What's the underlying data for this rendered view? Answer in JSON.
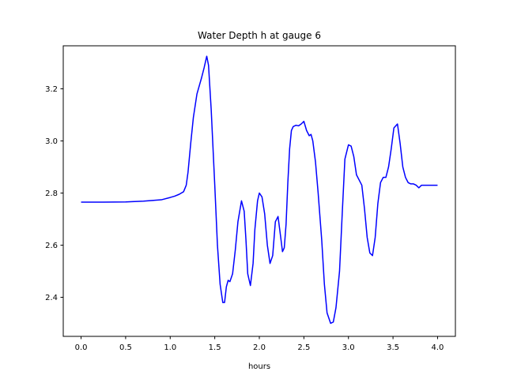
{
  "chart_data": {
    "type": "line",
    "title": "Water Depth h at gauge 6",
    "xlabel": "hours",
    "ylabel": "",
    "xlim": [
      -0.2,
      4.2
    ],
    "ylim": [
      2.25,
      3.365
    ],
    "xticks": [
      0.0,
      0.5,
      1.0,
      1.5,
      2.0,
      2.5,
      3.0,
      3.5,
      4.0
    ],
    "xtick_labels": [
      "0.0",
      "0.5",
      "1.0",
      "1.5",
      "2.0",
      "2.5",
      "3.0",
      "3.5",
      "4.0"
    ],
    "yticks": [
      2.4,
      2.6,
      2.8,
      3.0,
      3.2
    ],
    "ytick_labels": [
      "2.4",
      "2.6",
      "2.8",
      "3.0",
      "3.2"
    ],
    "grid": false,
    "series": [
      {
        "color": "#0000ff",
        "x": [
          0.0,
          0.25,
          0.5,
          0.7,
          0.9,
          1.0,
          1.05,
          1.1,
          1.15,
          1.18,
          1.2,
          1.23,
          1.26,
          1.3,
          1.35,
          1.38,
          1.41,
          1.43,
          1.46,
          1.5,
          1.53,
          1.56,
          1.59,
          1.61,
          1.63,
          1.65,
          1.67,
          1.7,
          1.73,
          1.76,
          1.8,
          1.83,
          1.85,
          1.87,
          1.9,
          1.93,
          1.95,
          1.98,
          2.0,
          2.03,
          2.06,
          2.09,
          2.12,
          2.15,
          2.18,
          2.21,
          2.24,
          2.26,
          2.28,
          2.3,
          2.32,
          2.34,
          2.36,
          2.38,
          2.41,
          2.44,
          2.47,
          2.5,
          2.53,
          2.56,
          2.58,
          2.6,
          2.63,
          2.66,
          2.7,
          2.73,
          2.76,
          2.8,
          2.83,
          2.86,
          2.9,
          2.93,
          2.96,
          3.0,
          3.03,
          3.06,
          3.09,
          3.12,
          3.15,
          3.18,
          3.21,
          3.24,
          3.27,
          3.3,
          3.33,
          3.36,
          3.39,
          3.42,
          3.45,
          3.48,
          3.51,
          3.55,
          3.58,
          3.61,
          3.64,
          3.67,
          3.7,
          3.73,
          3.76,
          3.79,
          3.82,
          3.85,
          3.88,
          3.91,
          3.94,
          3.97,
          4.0
        ],
        "y": [
          2.765,
          2.765,
          2.766,
          2.769,
          2.774,
          2.783,
          2.788,
          2.795,
          2.805,
          2.83,
          2.88,
          2.99,
          3.09,
          3.18,
          3.24,
          3.28,
          3.325,
          3.29,
          3.12,
          2.83,
          2.6,
          2.45,
          2.38,
          2.38,
          2.44,
          2.465,
          2.46,
          2.49,
          2.58,
          2.69,
          2.77,
          2.73,
          2.62,
          2.49,
          2.445,
          2.53,
          2.66,
          2.77,
          2.8,
          2.785,
          2.72,
          2.6,
          2.53,
          2.56,
          2.69,
          2.71,
          2.63,
          2.575,
          2.59,
          2.68,
          2.84,
          2.97,
          3.04,
          3.055,
          3.06,
          3.058,
          3.065,
          3.075,
          3.04,
          3.02,
          3.025,
          3.0,
          2.92,
          2.8,
          2.62,
          2.45,
          2.34,
          2.3,
          2.305,
          2.36,
          2.5,
          2.72,
          2.93,
          2.985,
          2.98,
          2.94,
          2.87,
          2.85,
          2.83,
          2.74,
          2.63,
          2.57,
          2.56,
          2.63,
          2.76,
          2.84,
          2.86,
          2.86,
          2.9,
          2.97,
          3.05,
          3.065,
          2.99,
          2.9,
          2.86,
          2.84,
          2.835,
          2.835,
          2.83,
          2.82,
          2.83,
          2.83,
          2.83,
          2.83,
          2.83,
          2.83,
          2.83
        ]
      }
    ]
  }
}
